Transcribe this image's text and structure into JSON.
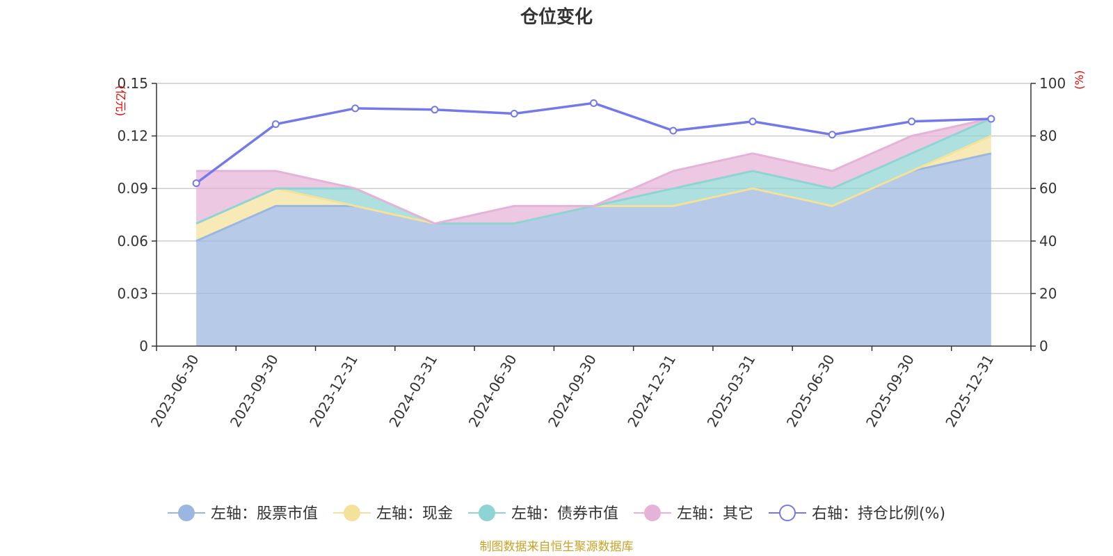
{
  "chart_data": {
    "type": "area",
    "title": "仓位变化",
    "x": [
      "2023-06-30",
      "2023-09-30",
      "2023-12-31",
      "2024-03-31",
      "2024-06-30",
      "2024-09-30",
      "2024-12-31",
      "2025-03-31",
      "2025-06-30",
      "2025-09-30",
      "2025-12-31"
    ],
    "left_axis": {
      "unit": "(亿元)",
      "ylim": [
        0,
        0.15
      ],
      "ticks": [
        "0",
        "0.03",
        "0.06",
        "0.09",
        "0.12",
        "0.15"
      ]
    },
    "right_axis": {
      "unit": "(%)",
      "ylim": [
        0,
        100
      ],
      "ticks": [
        "0",
        "20",
        "40",
        "60",
        "80",
        "100"
      ]
    },
    "stacked_series": [
      {
        "name": "左轴：股票市值",
        "color": "#9bb7e0",
        "values": [
          0.06,
          0.08,
          0.08,
          0.07,
          0.07,
          0.08,
          0.08,
          0.09,
          0.08,
          0.1,
          0.11
        ]
      },
      {
        "name": "左轴：现金",
        "color": "#f5e29a",
        "values": [
          0.01,
          0.01,
          0.0,
          0.0,
          0.0,
          0.0,
          0.0,
          0.0,
          0.0,
          0.0,
          0.01
        ]
      },
      {
        "name": "左轴：债券市值",
        "color": "#8fd4d4",
        "values": [
          0.0,
          0.0,
          0.01,
          0.0,
          0.0,
          0.0,
          0.01,
          0.01,
          0.01,
          0.01,
          0.01
        ]
      },
      {
        "name": "左轴：其它",
        "color": "#e6b3d8",
        "values": [
          0.03,
          0.01,
          0.0,
          0.0,
          0.01,
          0.0,
          0.01,
          0.01,
          0.01,
          0.01,
          0.0
        ]
      }
    ],
    "line_series": {
      "name": "右轴：持仓比例(%)",
      "color": "#7479ea",
      "values": [
        62,
        84.5,
        90.5,
        90,
        88.5,
        92.5,
        82,
        85.5,
        80.5,
        85.5,
        86.5
      ]
    },
    "grid": true,
    "legend_position": "bottom"
  },
  "footer": "制图数据来自恒生聚源数据库"
}
